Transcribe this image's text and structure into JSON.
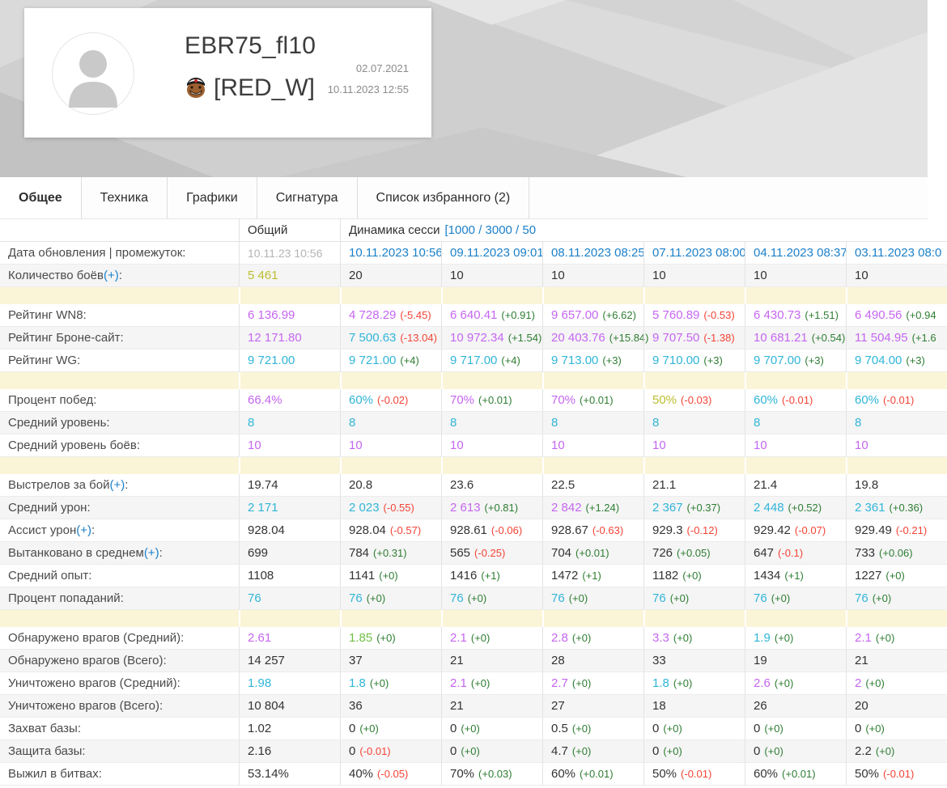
{
  "profile": {
    "name": "EBR75_fl10",
    "clan_tag": "[RED_W]",
    "clan_icon": "orc-face-icon",
    "avatar_icon": "person-icon",
    "registered": "02.07.2021",
    "updated": "10.11.2023 12:55"
  },
  "tabs": [
    {
      "label": "Общее",
      "active": true
    },
    {
      "label": "Техника",
      "active": false
    },
    {
      "label": "Графики",
      "active": false
    },
    {
      "label": "Сигнатура",
      "active": false
    },
    {
      "label": "Список избранного (2)",
      "active": false
    }
  ],
  "colors": {
    "purple": "#c566f0",
    "cyan": "#30b5d8",
    "yellow": "#bdbd2f",
    "green": "#70bf44",
    "black": "#333333",
    "gray_value": "#b4b4b4",
    "date_link": "#1b80c9",
    "delta_positive": "#2e7d32",
    "delta_negative": "#f44336",
    "separator_band": "#fbf5d8"
  },
  "table": {
    "header": {
      "overall_label": "Общий",
      "dynamics_label": "Динамика сесси",
      "dynamics_range_link": "[1000 / 3000 / 50"
    },
    "groups": [
      {
        "rows": [
          {
            "label": "Дата обновления | промежуток",
            "cells": [
              {
                "t": "10.11.23 10:56",
                "c": "gray"
              },
              {
                "t": "10.11.2023 10:56",
                "c": "date"
              },
              {
                "t": "09.11.2023 09:01",
                "c": "date"
              },
              {
                "t": "08.11.2023 08:25",
                "c": "date"
              },
              {
                "t": "07.11.2023 08:00",
                "c": "date"
              },
              {
                "t": "04.11.2023 08:37",
                "c": "date"
              },
              {
                "t": "03.11.2023 08:0",
                "c": "date"
              }
            ]
          },
          {
            "label": "Количество боёв",
            "link": "(+)",
            "cells": [
              {
                "t": "5 461",
                "c": "yellow"
              },
              {
                "t": "20"
              },
              {
                "t": "10"
              },
              {
                "t": "10"
              },
              {
                "t": "10"
              },
              {
                "t": "10"
              },
              {
                "t": "10"
              }
            ]
          }
        ]
      },
      {
        "rows": [
          {
            "label": "Рейтинг WN8",
            "cells": [
              {
                "t": "6 136.99",
                "c": "purple"
              },
              {
                "t": "4 728.29",
                "c": "purple",
                "d": "(-5.45)",
                "dc": "red"
              },
              {
                "t": "6 640.41",
                "c": "purple",
                "d": "(+0.91)",
                "dc": "green"
              },
              {
                "t": "9 657.00",
                "c": "purple",
                "d": "(+6.62)",
                "dc": "green"
              },
              {
                "t": "5 760.89",
                "c": "purple",
                "d": "(-0.53)",
                "dc": "red"
              },
              {
                "t": "6 430.73",
                "c": "purple",
                "d": "(+1.51)",
                "dc": "green"
              },
              {
                "t": "6 490.56",
                "c": "purple",
                "d": "(+0.94",
                "dc": "green"
              }
            ]
          },
          {
            "label": "Рейтинг Броне-сайт",
            "cells": [
              {
                "t": "12 171.80",
                "c": "purple"
              },
              {
                "t": "7 500.63",
                "c": "cyan",
                "d": "(-13.04)",
                "dc": "red"
              },
              {
                "t": "10 972.34",
                "c": "purple",
                "d": "(+1.54)",
                "dc": "green"
              },
              {
                "t": "20 403.76",
                "c": "purple",
                "d": "(+15.84)",
                "dc": "green"
              },
              {
                "t": "9 707.50",
                "c": "purple",
                "d": "(-1.38)",
                "dc": "red"
              },
              {
                "t": "10 681.21",
                "c": "purple",
                "d": "(+0.54)",
                "dc": "green"
              },
              {
                "t": "11 504.95",
                "c": "purple",
                "d": "(+1.6",
                "dc": "green"
              }
            ]
          },
          {
            "label": "Рейтинг WG",
            "cells": [
              {
                "t": "9 721.00",
                "c": "cyan"
              },
              {
                "t": "9 721.00",
                "c": "cyan",
                "d": "(+4)",
                "dc": "green"
              },
              {
                "t": "9 717.00",
                "c": "cyan",
                "d": "(+4)",
                "dc": "green"
              },
              {
                "t": "9 713.00",
                "c": "cyan",
                "d": "(+3)",
                "dc": "green"
              },
              {
                "t": "9 710.00",
                "c": "cyan",
                "d": "(+3)",
                "dc": "green"
              },
              {
                "t": "9 707.00",
                "c": "cyan",
                "d": "(+3)",
                "dc": "green"
              },
              {
                "t": "9 704.00",
                "c": "cyan",
                "d": "(+3)",
                "dc": "green"
              }
            ]
          }
        ]
      },
      {
        "rows": [
          {
            "label": "Процент побед",
            "cells": [
              {
                "t": "66.4%",
                "c": "purple"
              },
              {
                "t": "60%",
                "c": "cyan",
                "d": "(-0.02)",
                "dc": "red"
              },
              {
                "t": "70%",
                "c": "purple",
                "d": "(+0.01)",
                "dc": "green"
              },
              {
                "t": "70%",
                "c": "purple",
                "d": "(+0.01)",
                "dc": "green"
              },
              {
                "t": "50%",
                "c": "yellow",
                "d": "(-0.03)",
                "dc": "red"
              },
              {
                "t": "60%",
                "c": "cyan",
                "d": "(-0.01)",
                "dc": "red"
              },
              {
                "t": "60%",
                "c": "cyan",
                "d": "(-0.01)",
                "dc": "red"
              }
            ]
          },
          {
            "label": "Средний уровень",
            "cells": [
              {
                "t": "8",
                "c": "cyan"
              },
              {
                "t": "8",
                "c": "cyan"
              },
              {
                "t": "8",
                "c": "cyan"
              },
              {
                "t": "8",
                "c": "cyan"
              },
              {
                "t": "8",
                "c": "cyan"
              },
              {
                "t": "8",
                "c": "cyan"
              },
              {
                "t": "8",
                "c": "cyan"
              }
            ]
          },
          {
            "label": "Средний уровень боёв",
            "cells": [
              {
                "t": "10",
                "c": "purple"
              },
              {
                "t": "10",
                "c": "purple"
              },
              {
                "t": "10",
                "c": "purple"
              },
              {
                "t": "10",
                "c": "purple"
              },
              {
                "t": "10",
                "c": "purple"
              },
              {
                "t": "10",
                "c": "purple"
              },
              {
                "t": "10",
                "c": "purple"
              }
            ]
          }
        ]
      },
      {
        "rows": [
          {
            "label": "Выстрелов за бой",
            "link": "(+)",
            "cells": [
              {
                "t": "19.74"
              },
              {
                "t": "20.8"
              },
              {
                "t": "23.6"
              },
              {
                "t": "22.5"
              },
              {
                "t": "21.1"
              },
              {
                "t": "21.4"
              },
              {
                "t": "19.8"
              }
            ]
          },
          {
            "label": "Средний урон",
            "cells": [
              {
                "t": "2 171",
                "c": "cyan"
              },
              {
                "t": "2 023",
                "c": "cyan",
                "d": "(-0.55)",
                "dc": "red"
              },
              {
                "t": "2 613",
                "c": "purple",
                "d": "(+0.81)",
                "dc": "green"
              },
              {
                "t": "2 842",
                "c": "purple",
                "d": "(+1.24)",
                "dc": "green"
              },
              {
                "t": "2 367",
                "c": "cyan",
                "d": "(+0.37)",
                "dc": "green"
              },
              {
                "t": "2 448",
                "c": "cyan",
                "d": "(+0.52)",
                "dc": "green"
              },
              {
                "t": "2 361",
                "c": "cyan",
                "d": "(+0.36)",
                "dc": "green"
              }
            ]
          },
          {
            "label": "Ассист урон",
            "link": "(+)",
            "cells": [
              {
                "t": "928.04"
              },
              {
                "t": "928.04",
                "d": "(-0.57)",
                "dc": "red"
              },
              {
                "t": "928.61",
                "d": "(-0.06)",
                "dc": "red"
              },
              {
                "t": "928.67",
                "d": "(-0.63)",
                "dc": "red"
              },
              {
                "t": "929.3",
                "d": "(-0.12)",
                "dc": "red"
              },
              {
                "t": "929.42",
                "d": "(-0.07)",
                "dc": "red"
              },
              {
                "t": "929.49",
                "d": "(-0.21)",
                "dc": "red"
              }
            ]
          },
          {
            "label": "Вытанковано в среднем",
            "link": "(+)",
            "cells": [
              {
                "t": "699"
              },
              {
                "t": "784",
                "d": "(+0.31)",
                "dc": "green"
              },
              {
                "t": "565",
                "d": "(-0.25)",
                "dc": "red"
              },
              {
                "t": "704",
                "d": "(+0.01)",
                "dc": "green"
              },
              {
                "t": "726",
                "d": "(+0.05)",
                "dc": "green"
              },
              {
                "t": "647",
                "d": "(-0.1)",
                "dc": "red"
              },
              {
                "t": "733",
                "d": "(+0.06)",
                "dc": "green"
              }
            ]
          },
          {
            "label": "Средний опыт",
            "cells": [
              {
                "t": "1108"
              },
              {
                "t": "1141",
                "d": "(+0)",
                "dc": "green"
              },
              {
                "t": "1416",
                "d": "(+1)",
                "dc": "green"
              },
              {
                "t": "1472",
                "d": "(+1)",
                "dc": "green"
              },
              {
                "t": "1182",
                "d": "(+0)",
                "dc": "green"
              },
              {
                "t": "1434",
                "d": "(+1)",
                "dc": "green"
              },
              {
                "t": "1227",
                "d": "(+0)",
                "dc": "green"
              }
            ]
          },
          {
            "label": "Процент попаданий",
            "cells": [
              {
                "t": "76",
                "c": "cyan"
              },
              {
                "t": "76",
                "c": "cyan",
                "d": "(+0)",
                "dc": "green"
              },
              {
                "t": "76",
                "c": "cyan",
                "d": "(+0)",
                "dc": "green"
              },
              {
                "t": "76",
                "c": "cyan",
                "d": "(+0)",
                "dc": "green"
              },
              {
                "t": "76",
                "c": "cyan",
                "d": "(+0)",
                "dc": "green"
              },
              {
                "t": "76",
                "c": "cyan",
                "d": "(+0)",
                "dc": "green"
              },
              {
                "t": "76",
                "c": "cyan",
                "d": "(+0)",
                "dc": "green"
              }
            ]
          }
        ]
      },
      {
        "rows": [
          {
            "label": "Обнаружено врагов (Средний)",
            "cells": [
              {
                "t": "2.61",
                "c": "purple"
              },
              {
                "t": "1.85",
                "c": "green",
                "d": "(+0)",
                "dc": "green"
              },
              {
                "t": "2.1",
                "c": "purple",
                "d": "(+0)",
                "dc": "green"
              },
              {
                "t": "2.8",
                "c": "purple",
                "d": "(+0)",
                "dc": "green"
              },
              {
                "t": "3.3",
                "c": "purple",
                "d": "(+0)",
                "dc": "green"
              },
              {
                "t": "1.9",
                "c": "cyan",
                "d": "(+0)",
                "dc": "green"
              },
              {
                "t": "2.1",
                "c": "purple",
                "d": "(+0)",
                "dc": "green"
              }
            ]
          },
          {
            "label": "Обнаружено врагов (Всего)",
            "cells": [
              {
                "t": "14 257"
              },
              {
                "t": "37"
              },
              {
                "t": "21"
              },
              {
                "t": "28"
              },
              {
                "t": "33"
              },
              {
                "t": "19"
              },
              {
                "t": "21"
              }
            ]
          },
          {
            "label": "Уничтожено врагов (Средний)",
            "cells": [
              {
                "t": "1.98",
                "c": "cyan"
              },
              {
                "t": "1.8",
                "c": "cyan",
                "d": "(+0)",
                "dc": "green"
              },
              {
                "t": "2.1",
                "c": "purple",
                "d": "(+0)",
                "dc": "green"
              },
              {
                "t": "2.7",
                "c": "purple",
                "d": "(+0)",
                "dc": "green"
              },
              {
                "t": "1.8",
                "c": "cyan",
                "d": "(+0)",
                "dc": "green"
              },
              {
                "t": "2.6",
                "c": "purple",
                "d": "(+0)",
                "dc": "green"
              },
              {
                "t": "2",
                "c": "purple",
                "d": "(+0)",
                "dc": "green"
              }
            ]
          },
          {
            "label": "Уничтожено врагов (Всего)",
            "cells": [
              {
                "t": "10 804"
              },
              {
                "t": "36"
              },
              {
                "t": "21"
              },
              {
                "t": "27"
              },
              {
                "t": "18"
              },
              {
                "t": "26"
              },
              {
                "t": "20"
              }
            ]
          },
          {
            "label": "Захват базы",
            "cells": [
              {
                "t": "1.02"
              },
              {
                "t": "0",
                "d": "(+0)",
                "dc": "green"
              },
              {
                "t": "0",
                "d": "(+0)",
                "dc": "green"
              },
              {
                "t": "0.5",
                "d": "(+0)",
                "dc": "green"
              },
              {
                "t": "0",
                "d": "(+0)",
                "dc": "green"
              },
              {
                "t": "0",
                "d": "(+0)",
                "dc": "green"
              },
              {
                "t": "0",
                "d": "(+0)",
                "dc": "green"
              }
            ]
          },
          {
            "label": "Защита базы",
            "cells": [
              {
                "t": "2.16"
              },
              {
                "t": "0",
                "d": "(-0.01)",
                "dc": "red"
              },
              {
                "t": "0",
                "d": "(+0)",
                "dc": "green"
              },
              {
                "t": "4.7",
                "d": "(+0)",
                "dc": "green"
              },
              {
                "t": "0",
                "d": "(+0)",
                "dc": "green"
              },
              {
                "t": "0",
                "d": "(+0)",
                "dc": "green"
              },
              {
                "t": "2.2",
                "d": "(+0)",
                "dc": "green"
              }
            ]
          },
          {
            "label": "Выжил в битвах",
            "cells": [
              {
                "t": "53.14%"
              },
              {
                "t": "40%",
                "d": "(-0.05)",
                "dc": "red"
              },
              {
                "t": "70%",
                "d": "(+0.03)",
                "dc": "green"
              },
              {
                "t": "60%",
                "d": "(+0.01)",
                "dc": "green"
              },
              {
                "t": "50%",
                "d": "(-0.01)",
                "dc": "red"
              },
              {
                "t": "60%",
                "d": "(+0.01)",
                "dc": "green"
              },
              {
                "t": "50%",
                "d": "(-0.01)",
                "dc": "red"
              }
            ]
          }
        ]
      }
    ]
  }
}
